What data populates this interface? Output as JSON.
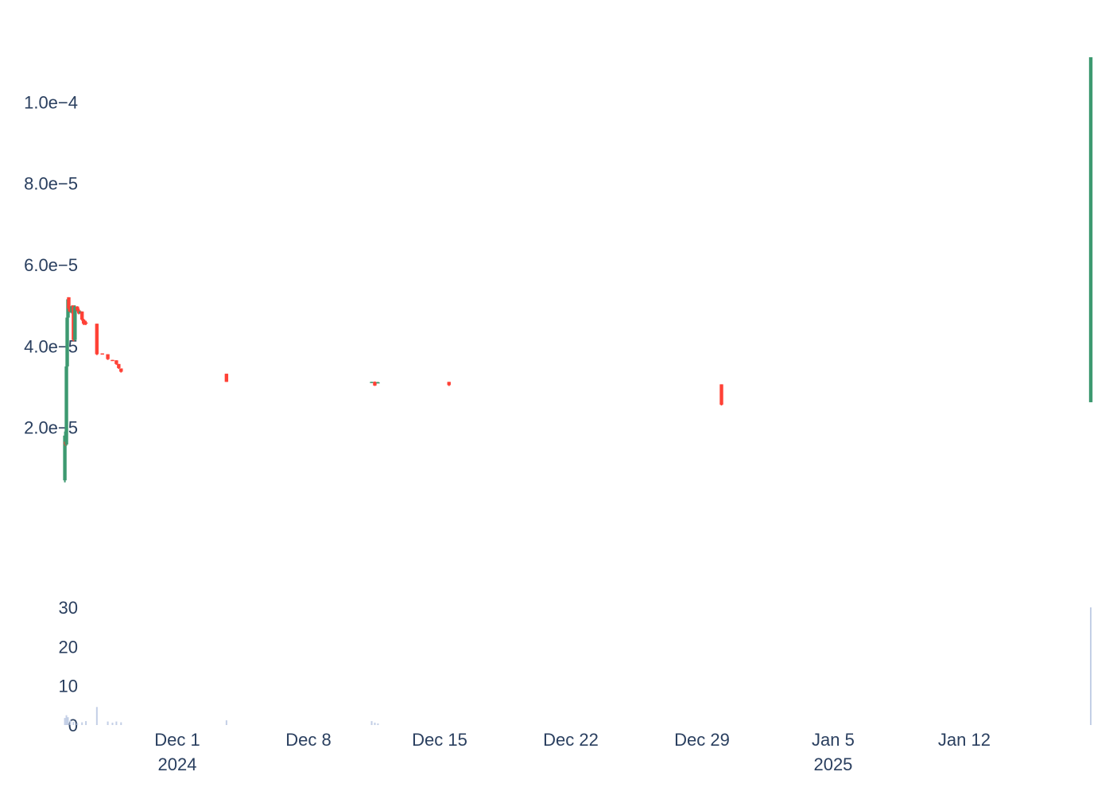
{
  "colors": {
    "increasing": "#3d9970",
    "decreasing": "#ff4136",
    "volume": "#c3cfe6",
    "text": "#2a3f5f",
    "background": "#ffffff"
  },
  "chart_data": [
    {
      "type": "candlestick",
      "panel": "price",
      "title": "",
      "xlabel": "",
      "ylabel": "",
      "grid": false,
      "legend": "none",
      "ylim": [
        0,
        0.000111
      ],
      "xlim": [
        "2024-11-23",
        "2025-01-19"
      ],
      "y_ticks": [
        {
          "value": 2e-05,
          "label": "2.0e−5"
        },
        {
          "value": 4e-05,
          "label": "4.0e−5"
        },
        {
          "value": 6e-05,
          "label": "6.0e−5"
        },
        {
          "value": 8e-05,
          "label": "8.0e−5"
        },
        {
          "value": 0.0001,
          "label": "1.0e−4"
        }
      ],
      "x_ticks": [
        {
          "date": "2024-12-01",
          "label": "Dec 1",
          "sublabel": "2024"
        },
        {
          "date": "2024-12-08",
          "label": "Dec 8",
          "sublabel": ""
        },
        {
          "date": "2024-12-15",
          "label": "Dec 15",
          "sublabel": ""
        },
        {
          "date": "2024-12-22",
          "label": "Dec 22",
          "sublabel": ""
        },
        {
          "date": "2024-12-29",
          "label": "Dec 29",
          "sublabel": ""
        },
        {
          "date": "2025-01-05",
          "label": "Jan 5",
          "sublabel": "2025"
        },
        {
          "date": "2025-01-12",
          "label": "Jan 12",
          "sublabel": ""
        }
      ],
      "candles": [
        {
          "t": "2024-11-25T00:00",
          "open": 7e-06,
          "high": 1.9e-05,
          "low": 6.5e-06,
          "close": 1.8e-05
        },
        {
          "t": "2024-11-25T01:00",
          "open": 1.65e-05,
          "high": 1.8e-05,
          "low": 1.55e-05,
          "close": 1.58e-05
        },
        {
          "t": "2024-11-25T02:00",
          "open": 1.58e-05,
          "high": 3.6e-05,
          "low": 1.55e-05,
          "close": 3.5e-05
        },
        {
          "t": "2024-11-25T03:00",
          "open": 3.5e-05,
          "high": 4.8e-05,
          "low": 3.4e-05,
          "close": 4.7e-05
        },
        {
          "t": "2024-11-25T04:00",
          "open": 4.7e-05,
          "high": 5.2e-05,
          "low": 4.6e-05,
          "close": 5.15e-05
        },
        {
          "t": "2024-11-25T05:00",
          "open": 5.2e-05,
          "high": 5.2e-05,
          "low": 4.85e-05,
          "close": 4.92e-05
        },
        {
          "t": "2024-11-25T07:00",
          "open": 4.95e-05,
          "high": 4.97e-05,
          "low": 4.82e-05,
          "close": 4.85e-05
        },
        {
          "t": "2024-11-25T09:00",
          "open": 4.82e-05,
          "high": 5e-05,
          "low": 4.8e-05,
          "close": 4.98e-05
        },
        {
          "t": "2024-11-25T11:00",
          "open": 5e-05,
          "high": 5e-05,
          "low": 4.12e-05,
          "close": 4.15e-05
        },
        {
          "t": "2024-11-25T13:00",
          "open": 4.15e-05,
          "high": 5e-05,
          "low": 4.13e-05,
          "close": 4.97e-05
        },
        {
          "t": "2024-11-25T16:00",
          "open": 4.97e-05,
          "high": 4.98e-05,
          "low": 4.85e-05,
          "close": 4.88e-05
        },
        {
          "t": "2024-11-25T18:00",
          "open": 4.88e-05,
          "high": 4.92e-05,
          "low": 4.78e-05,
          "close": 4.8e-05
        },
        {
          "t": "2024-11-25T20:00",
          "open": 4.8e-05,
          "high": 4.86e-05,
          "low": 4.8e-05,
          "close": 4.85e-05
        },
        {
          "t": "2024-11-25T22:00",
          "open": 4.85e-05,
          "high": 4.85e-05,
          "low": 4.62e-05,
          "close": 4.65e-05
        },
        {
          "t": "2024-11-26T00:00",
          "open": 4.65e-05,
          "high": 4.67e-05,
          "low": 4.52e-05,
          "close": 4.55e-05
        },
        {
          "t": "2024-11-26T02:00",
          "open": 4.58e-05,
          "high": 4.62e-05,
          "low": 4.52e-05,
          "close": 4.55e-05
        },
        {
          "t": "2024-11-26T03:00",
          "open": 4.58e-05,
          "high": 4.62e-05,
          "low": 4.52e-05,
          "close": 4.55e-05
        },
        {
          "t": "2024-11-26T17:00",
          "open": 4.55e-05,
          "high": 4.55e-05,
          "low": 3.78e-05,
          "close": 3.8e-05
        },
        {
          "t": "2024-11-27T00:00",
          "open": 3.82e-05,
          "high": 3.82e-05,
          "low": 3.8e-05,
          "close": 3.81e-05
        },
        {
          "t": "2024-11-27T07:00",
          "open": 3.8e-05,
          "high": 3.8e-05,
          "low": 3.66e-05,
          "close": 3.68e-05
        },
        {
          "t": "2024-11-27T13:00",
          "open": 3.66e-05,
          "high": 3.66e-05,
          "low": 3.65e-05,
          "close": 3.65e-05
        },
        {
          "t": "2024-11-27T18:00",
          "open": 3.65e-05,
          "high": 3.65e-05,
          "low": 3.54e-05,
          "close": 3.56e-05
        },
        {
          "t": "2024-11-27T21:00",
          "open": 3.56e-05,
          "high": 3.56e-05,
          "low": 3.44e-05,
          "close": 3.46e-05
        },
        {
          "t": "2024-11-28T00:00",
          "open": 3.45e-05,
          "high": 3.45e-05,
          "low": 3.35e-05,
          "close": 3.37e-05
        },
        {
          "t": "2024-12-03T15:00",
          "open": 3.32e-05,
          "high": 3.32e-05,
          "low": 3.12e-05,
          "close": 3.12e-05
        },
        {
          "t": "2024-12-11T09:00",
          "open": 3.12e-05,
          "high": 3.12e-05,
          "low": 3.11e-05,
          "close": 3.12e-05
        },
        {
          "t": "2024-12-11T13:00",
          "open": 3.12e-05,
          "high": 3.13e-05,
          "low": 3.02e-05,
          "close": 3.03e-05
        },
        {
          "t": "2024-12-11T17:00",
          "open": 3.11e-05,
          "high": 3.12e-05,
          "low": 3.1e-05,
          "close": 3.11e-05
        },
        {
          "t": "2024-12-15T12:00",
          "open": 3.12e-05,
          "high": 3.12e-05,
          "low": 3.02e-05,
          "close": 3.04e-05
        },
        {
          "t": "2024-12-30T01:00",
          "open": 3.06e-05,
          "high": 3.06e-05,
          "low": 2.54e-05,
          "close": 2.56e-05
        },
        {
          "t": "2025-01-18T18:00",
          "open": 2.62e-05,
          "high": 0.000111,
          "low": 2.62e-05,
          "close": 0.000111
        }
      ]
    },
    {
      "type": "bar",
      "panel": "volume",
      "title": "",
      "xlabel": "",
      "ylabel": "",
      "grid": false,
      "ylim": [
        0,
        30
      ],
      "y_ticks": [
        {
          "value": 0,
          "label": "0"
        },
        {
          "value": 10,
          "label": "10"
        },
        {
          "value": 20,
          "label": "20"
        },
        {
          "value": 30,
          "label": "30"
        }
      ],
      "bars": [
        {
          "t": "2024-11-25T00:00",
          "value": 1.8
        },
        {
          "t": "2024-11-25T02:00",
          "value": 2.5
        },
        {
          "t": "2024-11-25T04:00",
          "value": 2.0
        },
        {
          "t": "2024-11-25T07:00",
          "value": 1.2
        },
        {
          "t": "2024-11-25T11:00",
          "value": 0.8
        },
        {
          "t": "2024-11-25T16:00",
          "value": 0.5
        },
        {
          "t": "2024-11-25T22:00",
          "value": 0.7
        },
        {
          "t": "2024-11-26T03:00",
          "value": 1.0
        },
        {
          "t": "2024-11-26T17:00",
          "value": 4.6
        },
        {
          "t": "2024-11-27T07:00",
          "value": 0.9
        },
        {
          "t": "2024-11-27T13:00",
          "value": 0.6
        },
        {
          "t": "2024-11-27T18:00",
          "value": 0.9
        },
        {
          "t": "2024-11-28T00:00",
          "value": 0.7
        },
        {
          "t": "2024-12-03T15:00",
          "value": 1.2
        },
        {
          "t": "2024-12-11T09:00",
          "value": 1.0
        },
        {
          "t": "2024-12-11T13:00",
          "value": 0.6
        },
        {
          "t": "2024-12-11T17:00",
          "value": 0.4
        },
        {
          "t": "2025-01-18T18:00",
          "value": 30.0
        }
      ]
    }
  ]
}
